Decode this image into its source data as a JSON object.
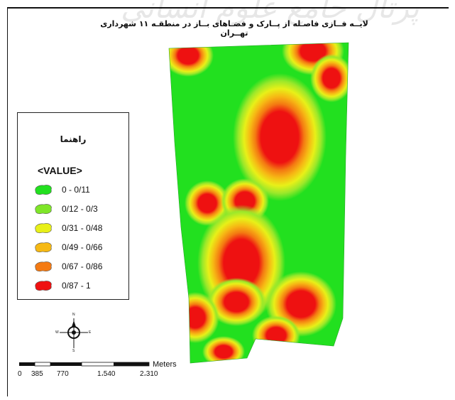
{
  "map": {
    "title": "لایــه فــازی فاصـله از پــارک و فضـاهای بــاز در منطقـه ۱۱ شهرداری تهــران",
    "watermark": "پرتال جامع علوم انسانی"
  },
  "legend": {
    "title": "راهنما",
    "field": "<VALUE>",
    "items": [
      {
        "label": "0 - 0/11",
        "color": "#22e01f"
      },
      {
        "label": "0/12 - 0/3",
        "color": "#7fe628"
      },
      {
        "label": "0/31 - 0/48",
        "color": "#e8f018"
      },
      {
        "label": "0/49 - 0/66",
        "color": "#f6b914"
      },
      {
        "label": "0/67 - 0/86",
        "color": "#f47a12"
      },
      {
        "label": "0/87 - 1",
        "color": "#ef1111"
      }
    ]
  },
  "compass": {
    "n": "N",
    "s": "S",
    "e": "E",
    "w": "W"
  },
  "scalebar": {
    "unit": "Meters",
    "ticks": [
      "0",
      "385",
      "770",
      "1،540",
      "2،310"
    ]
  }
}
